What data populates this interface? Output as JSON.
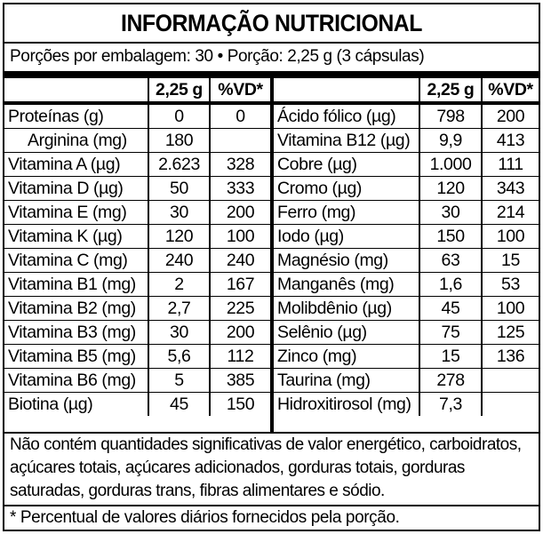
{
  "title": "INFORMAÇÃO NUTRICIONAL",
  "portion": "Porções por embalagem: 30 • Porção: 2,25 g (3 cápsulas)",
  "headers": {
    "amount": "2,25 g",
    "dv": "%VD*"
  },
  "left_rows": [
    {
      "name": "Proteínas (g)",
      "amount": "0",
      "dv": "0"
    },
    {
      "name": "Arginina (mg)",
      "amount": "180",
      "dv": ""
    },
    {
      "name": "Vitamina A (µg)",
      "amount": "2.623",
      "dv": "328"
    },
    {
      "name": "Vitamina D (µg)",
      "amount": "50",
      "dv": "333"
    },
    {
      "name": "Vitamina E (mg)",
      "amount": "30",
      "dv": "200"
    },
    {
      "name": "Vitamina K (µg)",
      "amount": "120",
      "dv": "100"
    },
    {
      "name": "Vitamina C (mg)",
      "amount": "240",
      "dv": "240"
    },
    {
      "name": "Vitamina B1 (mg)",
      "amount": "2",
      "dv": "167"
    },
    {
      "name": "Vitamina B2 (mg)",
      "amount": "2,7",
      "dv": "225"
    },
    {
      "name": "Vitamina B3 (mg)",
      "amount": "30",
      "dv": "200"
    },
    {
      "name": "Vitamina B5 (mg)",
      "amount": "5,6",
      "dv": "112"
    },
    {
      "name": "Vitamina B6 (mg)",
      "amount": "5",
      "dv": "385"
    },
    {
      "name": "Biotina (µg)",
      "amount": "45",
      "dv": "150"
    }
  ],
  "right_rows": [
    {
      "name": "Ácido fólico (µg)",
      "amount": "798",
      "dv": "200"
    },
    {
      "name": "Vitamina B12 (µg)",
      "amount": "9,9",
      "dv": "413"
    },
    {
      "name": "Cobre (µg)",
      "amount": "1.000",
      "dv": "111"
    },
    {
      "name": "Cromo (µg)",
      "amount": "120",
      "dv": "343"
    },
    {
      "name": "Ferro (mg)",
      "amount": "30",
      "dv": "214"
    },
    {
      "name": "Iodo (µg)",
      "amount": "150",
      "dv": "100"
    },
    {
      "name": "Magnésio (mg)",
      "amount": "63",
      "dv": "15"
    },
    {
      "name": "Manganês (mg)",
      "amount": "1,6",
      "dv": "53"
    },
    {
      "name": "Molibdênio (µg)",
      "amount": "45",
      "dv": "100"
    },
    {
      "name": "Selênio (µg)",
      "amount": "75",
      "dv": "125"
    },
    {
      "name": "Zinco (mg)",
      "amount": "15",
      "dv": "136"
    },
    {
      "name": "Taurina (mg)",
      "amount": "278",
      "dv": ""
    },
    {
      "name": "Hidroxitirosol (mg)",
      "amount": "7,3",
      "dv": ""
    }
  ],
  "note": "Não contém quantidades significativas de valor energético, carboidratos, açúcares totais, açúcares adicionados, gorduras totais, gorduras saturadas, gorduras trans, fibras alimentares e sódio.",
  "footnote": "* Percentual de valores diários fornecidos pela porção."
}
